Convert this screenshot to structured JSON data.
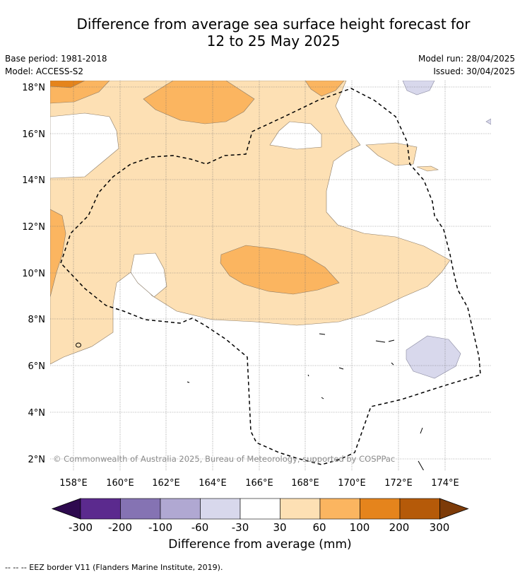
{
  "title_line1": "Difference from average sea surface height forecast for",
  "title_line2": "12 to 25 May 2025",
  "base_period": "Base period: 1981-2018",
  "model": "Model: ACCESS-S2",
  "model_run": "Model run: 28/04/2025",
  "issued": "Issued: 30/04/2025",
  "copyright": "© Commonwealth of Australia 2025, Bureau of Meteorology, supported by COSPPac",
  "footer_note": "--  --  -- EEZ border V11 (Flanders Marine Institute, 2019).",
  "map": {
    "lat_labels": [
      "18°N",
      "16°N",
      "14°N",
      "12°N",
      "10°N",
      "8°N",
      "6°N",
      "4°N",
      "2°N"
    ],
    "lon_labels": [
      "158°E",
      "160°E",
      "162°E",
      "164°E",
      "166°E",
      "168°E",
      "170°E",
      "172°E",
      "174°E"
    ]
  },
  "colorbar": {
    "label": "Difference from average (mm)",
    "ticks": [
      "-300",
      "-200",
      "-100",
      "-60",
      "-30",
      "30",
      "60",
      "100",
      "200",
      "300"
    ],
    "colors": [
      "#2e0a4f",
      "#5b2a8e",
      "#8573b3",
      "#b0a8d2",
      "#d8d8ec",
      "#ffffff",
      "#fde0b4",
      "#fbb560",
      "#e5841c",
      "#b55a09",
      "#7d3b08"
    ]
  }
}
